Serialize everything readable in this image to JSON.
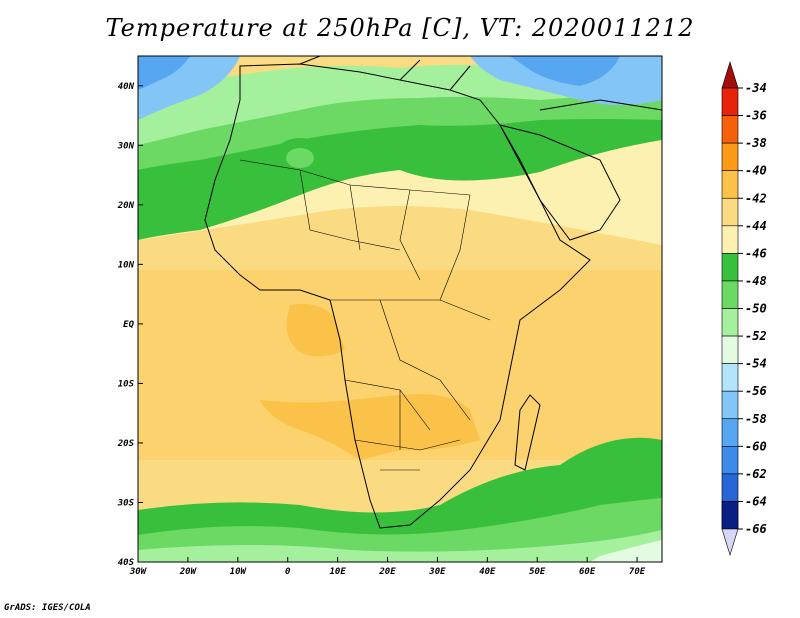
{
  "title": "Temperature at 250hPa [C], VT: 2020011212",
  "footer": "GrADS: IGES/COLA",
  "map": {
    "lon_range": [
      -30,
      75
    ],
    "lat_range": [
      -40,
      45
    ],
    "lon_ticks": [
      {
        "value": -30,
        "label": "30W"
      },
      {
        "value": -20,
        "label": "20W"
      },
      {
        "value": -10,
        "label": "10W"
      },
      {
        "value": 0,
        "label": "0"
      },
      {
        "value": 10,
        "label": "10E"
      },
      {
        "value": 20,
        "label": "20E"
      },
      {
        "value": 30,
        "label": "30E"
      },
      {
        "value": 40,
        "label": "40E"
      },
      {
        "value": 50,
        "label": "50E"
      },
      {
        "value": 60,
        "label": "60E"
      },
      {
        "value": 70,
        "label": "70E"
      }
    ],
    "lat_ticks": [
      {
        "value": 40,
        "label": "40N"
      },
      {
        "value": 30,
        "label": "30N"
      },
      {
        "value": 20,
        "label": "20N"
      },
      {
        "value": 10,
        "label": "10N"
      },
      {
        "value": 0,
        "label": "EQ"
      },
      {
        "value": -10,
        "label": "10S"
      },
      {
        "value": -20,
        "label": "20S"
      },
      {
        "value": -30,
        "label": "30S"
      },
      {
        "value": -40,
        "label": "40S"
      }
    ]
  },
  "legend": {
    "levels": [
      {
        "label": "-34",
        "color": "#e8230c"
      },
      {
        "label": "-36",
        "color": "#f6600b"
      },
      {
        "label": "-38",
        "color": "#fb9a16"
      },
      {
        "label": "-40",
        "color": "#fbc24a"
      },
      {
        "label": "-42",
        "color": "#fbdb82"
      },
      {
        "label": "-44",
        "color": "#fdf1b1"
      },
      {
        "label": "-46",
        "color": "#38bf3c"
      },
      {
        "label": "-48",
        "color": "#6cd965"
      },
      {
        "label": "-50",
        "color": "#a5f09d"
      },
      {
        "label": "-52",
        "color": "#e2fbe1"
      },
      {
        "label": "-54",
        "color": "#b2e4fb"
      },
      {
        "label": "-56",
        "color": "#84c5f7"
      },
      {
        "label": "-58",
        "color": "#57a6f2"
      },
      {
        "label": "-60",
        "color": "#3c8ae9"
      },
      {
        "label": "-62",
        "color": "#2666d6"
      },
      {
        "label": "-64",
        "color": "#1446b8"
      },
      {
        "label": "-66",
        "color": "#0a1f84"
      }
    ],
    "top_arrow_color": "#a20d0d",
    "bottom_arrow_color": "#d6d6f6"
  }
}
